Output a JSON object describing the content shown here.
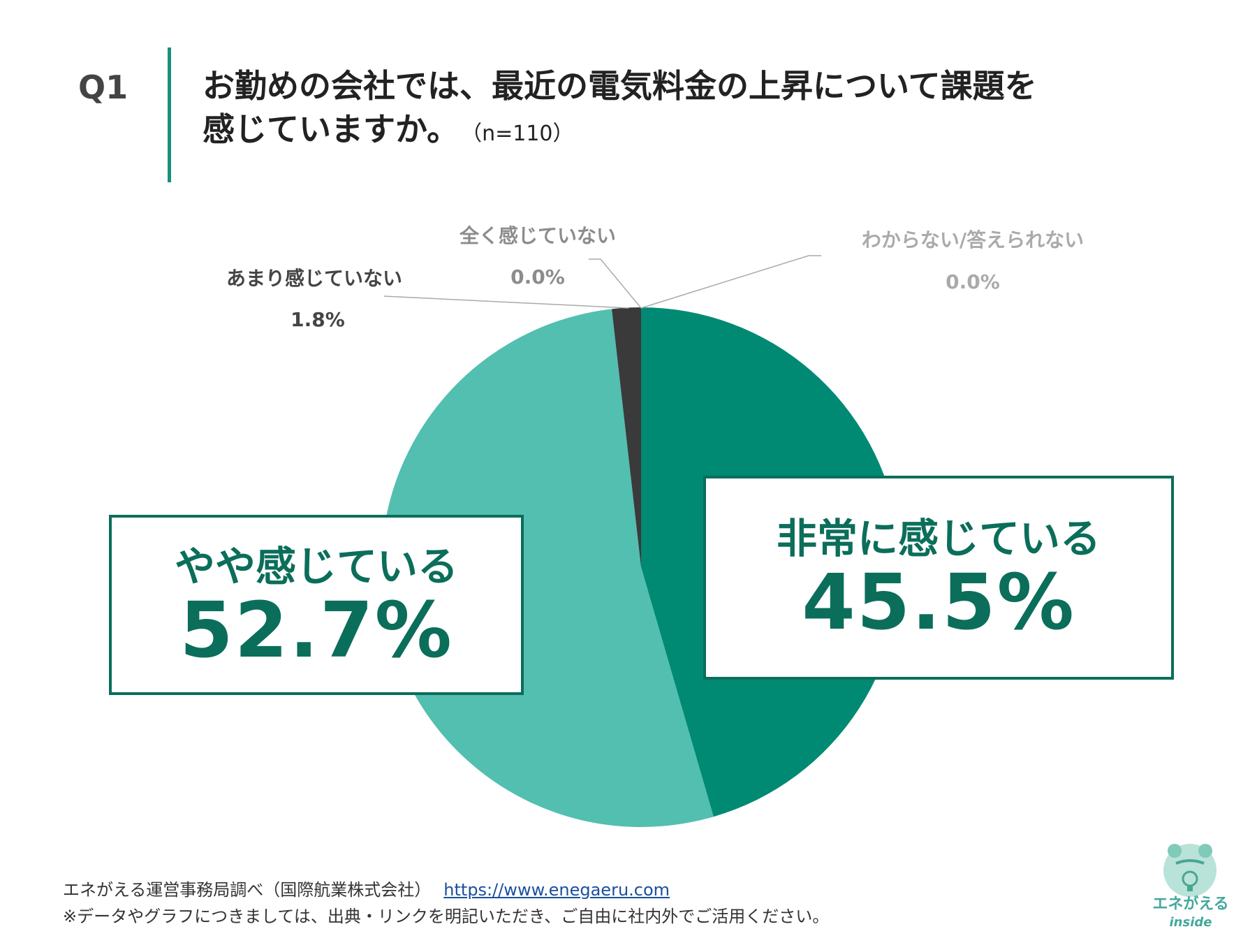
{
  "question": {
    "number": "Q1",
    "line1": "お勤めの会社では、最近の電気料金の上昇について課題を",
    "line2": "感じていますか。",
    "n": "（n=110）"
  },
  "chart_data": {
    "type": "pie",
    "categories": [
      "非常に感じている",
      "やや感じている",
      "あまり感じていない",
      "全く感じていない",
      "わからない/答えられない"
    ],
    "values": [
      45.5,
      52.7,
      1.8,
      0.0,
      0.0
    ],
    "value_labels": [
      "45.5%",
      "52.7%",
      "1.8%",
      "0.0%",
      "0.0%"
    ],
    "colors": [
      "#008a73",
      "#52bfb0",
      "#3a3a3a",
      "#999999",
      "#aaaaaa"
    ],
    "start_angle": "12 o'clock",
    "direction": "clockwise"
  },
  "footer": {
    "line1": "エネがえる運営事務局調べ（国際航業株式会社）",
    "link": "https://www.enegaeru.com",
    "line2": "※データやグラフにつきましては、出典・リンクを明記いただき、ご自由に社内外でご活用ください。"
  },
  "logo": {
    "name": "エネがえる",
    "sub": "inside"
  }
}
